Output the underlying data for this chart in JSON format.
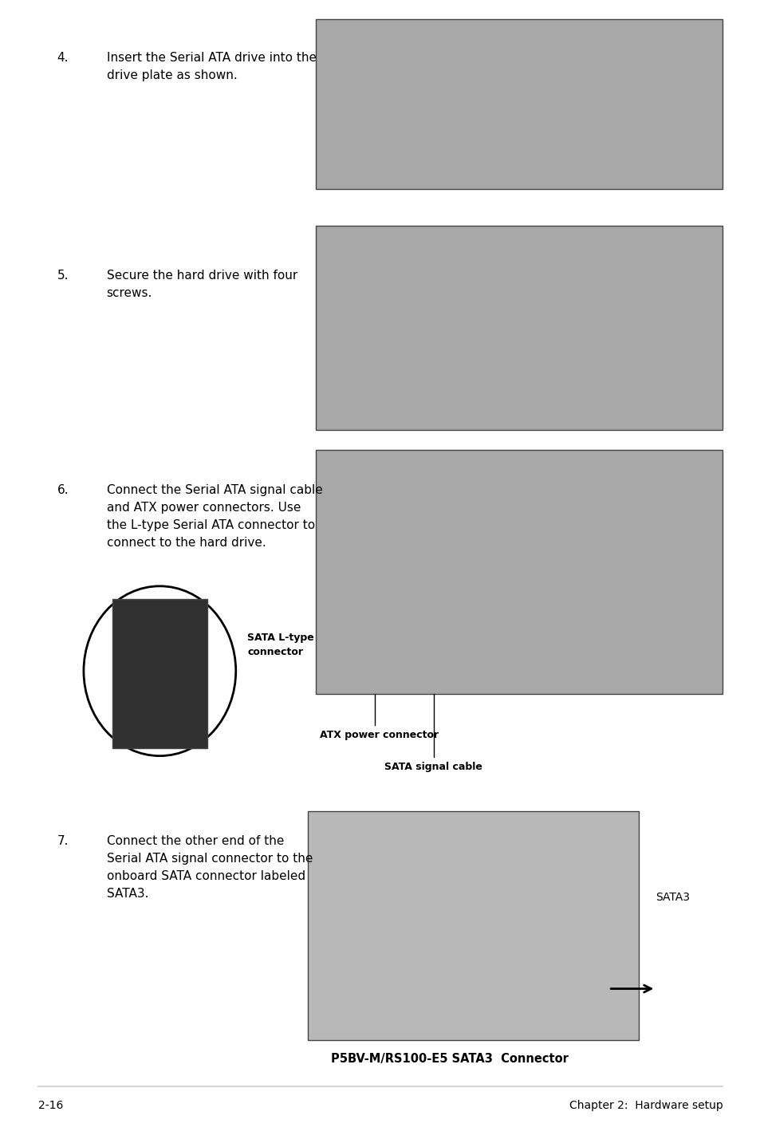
{
  "page_background": "#ffffff",
  "page_width": 9.54,
  "page_height": 14.38,
  "dpi": 100,
  "footer_left": "2-16",
  "footer_right": "Chapter 2:  Hardware setup",
  "footer_fontsize": 10,
  "footer_line_color": "#cccccc",
  "step4_num": "4.",
  "step4_text": "Insert the Serial ATA drive into the\ndrive plate as shown.",
  "step5_num": "5.",
  "step5_text": "Secure the hard drive with four\nscrews.",
  "step6_num": "6.",
  "step6_text": "Connect the Serial ATA signal cable\nand ATX power connectors. Use\nthe L-type Serial ATA connector to\nconnect to the hard drive.",
  "step7_num": "7.",
  "step7_text": "Connect the other end of the\nSerial ATA signal connector to the\nonboard SATA connector labeled\nSATA3.",
  "sata_ltype_label": "SATA L-type\nconnector",
  "atx_label": "ATX power connector",
  "sata_cable_label": "SATA signal cable",
  "sata3_label": "SATA3",
  "caption": "P5BV-M/RS100-E5 SATA3  Connector",
  "label_fontsize": 9,
  "step_fontsize": 11,
  "body_fontsize": 11
}
